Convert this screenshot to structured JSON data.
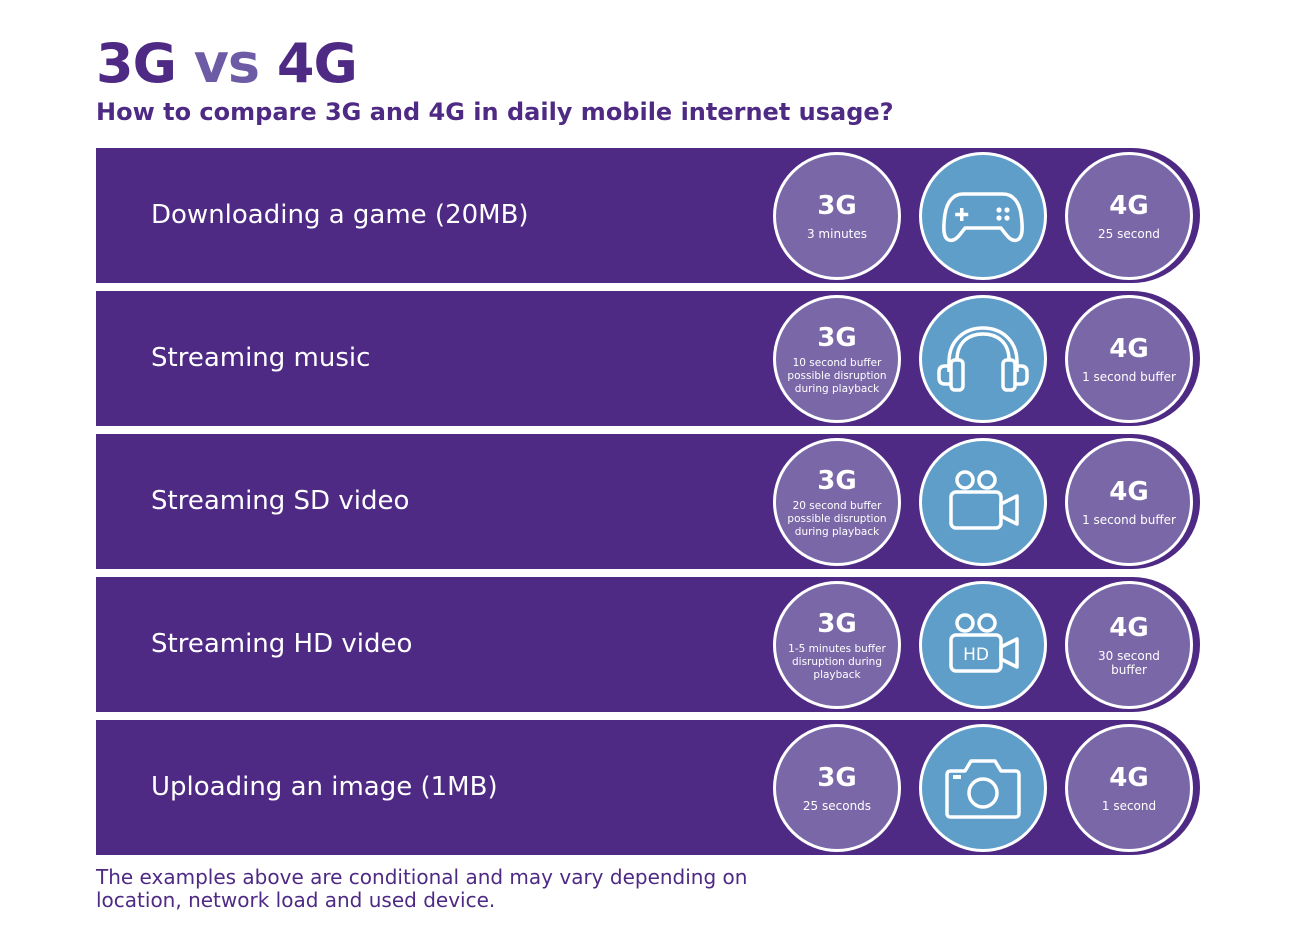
{
  "title": {
    "part1": "3G",
    "part2": "vs",
    "part3": "4G"
  },
  "subtitle": "How to compare 3G and 4G in daily mobile internet usage?",
  "colors": {
    "row_bg": "#4e2a84",
    "gen_circle": "#7a67a8",
    "icon_circle": "#5f9ec8",
    "text_dark": "#4e2a84"
  },
  "rows": [
    {
      "label": "Downloading a game (20MB)",
      "icon": "gamepad-icon",
      "g3": {
        "gen": "3G",
        "detail": "3 minutes"
      },
      "g4": {
        "gen": "4G",
        "detail": "25 second"
      }
    },
    {
      "label": "Streaming music",
      "icon": "headphones-icon",
      "g3": {
        "gen": "3G",
        "detail": "10 second buffer possible disruption during playback"
      },
      "g4": {
        "gen": "4G",
        "detail": "1 second buffer"
      }
    },
    {
      "label": "Streaming SD video",
      "icon": "video-camera-icon",
      "g3": {
        "gen": "3G",
        "detail": "20 second buffer possible disruption during playback"
      },
      "g4": {
        "gen": "4G",
        "detail": "1 second buffer"
      }
    },
    {
      "label": "Streaming HD video",
      "icon": "hd-video-camera-icon",
      "icon_text": "HD",
      "g3": {
        "gen": "3G",
        "detail": "1-5 minutes buffer disruption during playback"
      },
      "g4": {
        "gen": "4G",
        "detail": "30 second buffer"
      }
    },
    {
      "label": "Uploading an image (1MB)",
      "icon": "camera-icon",
      "g3": {
        "gen": "3G",
        "detail": "25 seconds"
      },
      "g4": {
        "gen": "4G",
        "detail": "1 second"
      }
    }
  ],
  "footnote": "The examples above are conditional and may vary depending on location, network load and used device."
}
